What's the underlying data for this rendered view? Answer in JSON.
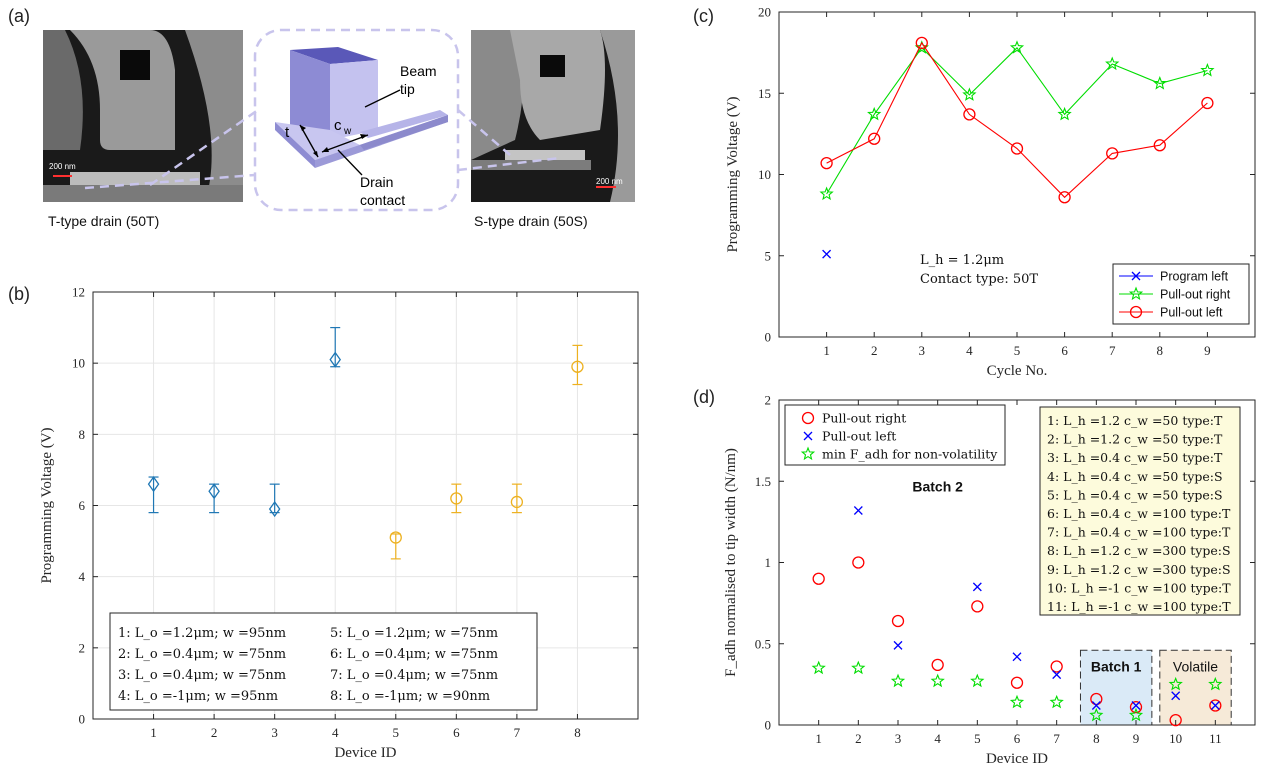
{
  "panel_a": {
    "letter": "(a)",
    "left_caption": "T-type drain (50T)",
    "right_caption": "S-type drain (50S)",
    "scale_left": "200 nm",
    "scale_right": "200 nm",
    "callout_beam": "Beam",
    "callout_tip": "tip",
    "callout_t": "t",
    "callout_cw": "c",
    "callout_cw_sub": "w",
    "callout_drain": "Drain",
    "callout_contact": "contact"
  },
  "panel_b": {
    "letter": "(b)"
  },
  "panel_c": {
    "letter": "(c)"
  },
  "panel_d": {
    "letter": "(d)"
  },
  "chart_data": [
    {
      "id": "b",
      "type": "scatter",
      "xlabel": "Device ID",
      "ylabel": "Programming Voltage (V)",
      "xlim": [
        0,
        9
      ],
      "ylim": [
        0,
        12
      ],
      "xticks": [
        1,
        2,
        3,
        4,
        5,
        6,
        7,
        8
      ],
      "yticks": [
        0,
        2,
        4,
        6,
        8,
        10,
        12
      ],
      "grid": true,
      "points": [
        {
          "x": 1,
          "y": 6.6,
          "lo": 5.8,
          "hi": 6.8,
          "marker": "diamond",
          "color": "#1f77b4"
        },
        {
          "x": 2,
          "y": 6.4,
          "lo": 5.8,
          "hi": 6.6,
          "marker": "diamond",
          "color": "#1f77b4"
        },
        {
          "x": 3,
          "y": 5.9,
          "lo": 5.8,
          "hi": 6.6,
          "marker": "diamond",
          "color": "#1f77b4"
        },
        {
          "x": 4,
          "y": 10.1,
          "lo": 9.9,
          "hi": 11.0,
          "marker": "diamond",
          "color": "#1f77b4"
        },
        {
          "x": 5,
          "y": 5.1,
          "lo": 4.5,
          "hi": 5.2,
          "marker": "circle",
          "color": "#edb120"
        },
        {
          "x": 6,
          "y": 6.2,
          "lo": 5.8,
          "hi": 6.6,
          "marker": "circle",
          "color": "#edb120"
        },
        {
          "x": 7,
          "y": 6.1,
          "lo": 5.8,
          "hi": 6.6,
          "marker": "circle",
          "color": "#edb120"
        },
        {
          "x": 8,
          "y": 9.9,
          "lo": 9.4,
          "hi": 10.5,
          "marker": "circle",
          "color": "#edb120"
        }
      ],
      "legend_placement": "bottom-center",
      "legend_rows": [
        [
          "1:  L_o =1.2μm; w =95nm",
          "5:  L_o =1.2μm; w =75nm"
        ],
        [
          "2:  L_o =0.4μm; w =75nm",
          "6:  L_o =0.4μm; w =75nm"
        ],
        [
          "3:  L_o =0.4μm; w =75nm",
          "7:  L_o =0.4μm; w =75nm"
        ],
        [
          "4:  L_o =-1μm; w =95nm",
          "8:  L_o =-1μm; w =90nm"
        ]
      ]
    },
    {
      "id": "c",
      "type": "line",
      "xlabel": "Cycle No.",
      "ylabel": "Programming Voltage (V)",
      "xlim": [
        0,
        10
      ],
      "ylim": [
        0,
        20
      ],
      "xticks": [
        1,
        2,
        3,
        4,
        5,
        6,
        7,
        8,
        9
      ],
      "yticks": [
        0,
        5,
        10,
        15,
        20
      ],
      "grid": false,
      "x": [
        1,
        2,
        3,
        4,
        5,
        6,
        7,
        8,
        9
      ],
      "series": [
        {
          "name": "Program left",
          "color": "#0000ff",
          "marker": "x",
          "points": [
            [
              1,
              5.1
            ]
          ]
        },
        {
          "name": "Pull-out right",
          "color": "#00dd00",
          "marker": "star",
          "points": [
            [
              1,
              8.8
            ],
            [
              2,
              13.7
            ],
            [
              3,
              17.8
            ],
            [
              4,
              14.9
            ],
            [
              5,
              17.8
            ],
            [
              6,
              13.7
            ],
            [
              7,
              16.8
            ],
            [
              8,
              15.6
            ],
            [
              9,
              16.4
            ]
          ]
        },
        {
          "name": "Pull-out left",
          "color": "#ff0000",
          "marker": "circle",
          "points": [
            [
              1,
              10.7
            ],
            [
              2,
              12.2
            ],
            [
              3,
              18.1
            ],
            [
              4,
              13.7
            ],
            [
              5,
              11.6
            ],
            [
              6,
              8.6
            ],
            [
              7,
              11.3
            ],
            [
              8,
              11.8
            ],
            [
              9,
              14.4
            ]
          ]
        }
      ],
      "annotation_line1": "L_h = 1.2μm",
      "annotation_line2": "Contact type: 50T",
      "legend_placement": "bottom-right"
    },
    {
      "id": "d",
      "type": "scatter",
      "xlabel": "Device ID",
      "ylabel": "F_adh normalised to tip width (N/nm)",
      "xlim": [
        0,
        12
      ],
      "ylim": [
        0,
        2
      ],
      "xticks": [
        1,
        2,
        3,
        4,
        5,
        6,
        7,
        8,
        9,
        10,
        11
      ],
      "yticks": [
        0,
        0.5,
        1,
        1.5,
        2
      ],
      "ytick_labels": [
        "0",
        "0.5",
        "1",
        "1.5",
        "2"
      ],
      "grid": false,
      "series": [
        {
          "name": "Pull-out right",
          "color": "#ff0000",
          "marker": "circle",
          "points": [
            [
              1,
              0.9
            ],
            [
              2,
              1.0
            ],
            [
              3,
              0.64
            ],
            [
              4,
              0.37
            ],
            [
              5,
              0.73
            ],
            [
              6,
              0.26
            ],
            [
              7,
              0.36
            ],
            [
              8,
              0.16
            ],
            [
              9,
              0.11
            ],
            [
              10,
              0.03
            ],
            [
              11,
              0.12
            ]
          ]
        },
        {
          "name": "Pull-out left",
          "color": "#0000ff",
          "marker": "x",
          "points": [
            [
              2,
              1.32
            ],
            [
              3,
              0.49
            ],
            [
              5,
              0.85
            ],
            [
              6,
              0.42
            ],
            [
              7,
              0.31
            ],
            [
              8,
              0.12
            ],
            [
              9,
              0.12
            ],
            [
              10,
              0.18
            ],
            [
              11,
              0.12
            ]
          ]
        },
        {
          "name": "min F_adh for non-volatility",
          "color": "#00dd00",
          "marker": "star",
          "points": [
            [
              1,
              0.35
            ],
            [
              2,
              0.35
            ],
            [
              3,
              0.27
            ],
            [
              4,
              0.27
            ],
            [
              5,
              0.27
            ],
            [
              6,
              0.14
            ],
            [
              7,
              0.14
            ],
            [
              8,
              0.06
            ],
            [
              9,
              0.06
            ],
            [
              10,
              0.25
            ],
            [
              11,
              0.25
            ]
          ]
        }
      ],
      "groups": [
        {
          "label": "Batch 2",
          "x_from": 1,
          "x_to": 7,
          "y": 1.5,
          "box": false
        },
        {
          "label": "Batch 1",
          "x_from": 7.6,
          "x_to": 9.4,
          "y_from": 0,
          "y_to": 0.46,
          "box": true,
          "fill": "#daeaf7"
        },
        {
          "label": "Volatile",
          "x_from": 9.6,
          "x_to": 11.4,
          "y_from": 0,
          "y_to": 0.46,
          "box": true,
          "fill": "#f6ead8"
        }
      ],
      "info_box_rows": [
        "1:  L_h =1.2 c_w =50 type:T",
        "2:  L_h =1.2 c_w =50 type:T",
        "3:  L_h =0.4 c_w =50 type:T",
        "4:  L_h =0.4 c_w =50 type:S",
        "5:  L_h =0.4 c_w =50 type:S",
        "6:  L_h =0.4 c_w =100 type:T",
        "7:  L_h =0.4 c_w =100 type:T",
        "8:  L_h =1.2 c_w =300 type:S",
        "9:  L_h =1.2 c_w =300 type:S",
        "10:  L_h =-1 c_w =100 type:T",
        "11:  L_h =-1 c_w =100 type:T"
      ],
      "legend_placement": "top-left"
    }
  ]
}
